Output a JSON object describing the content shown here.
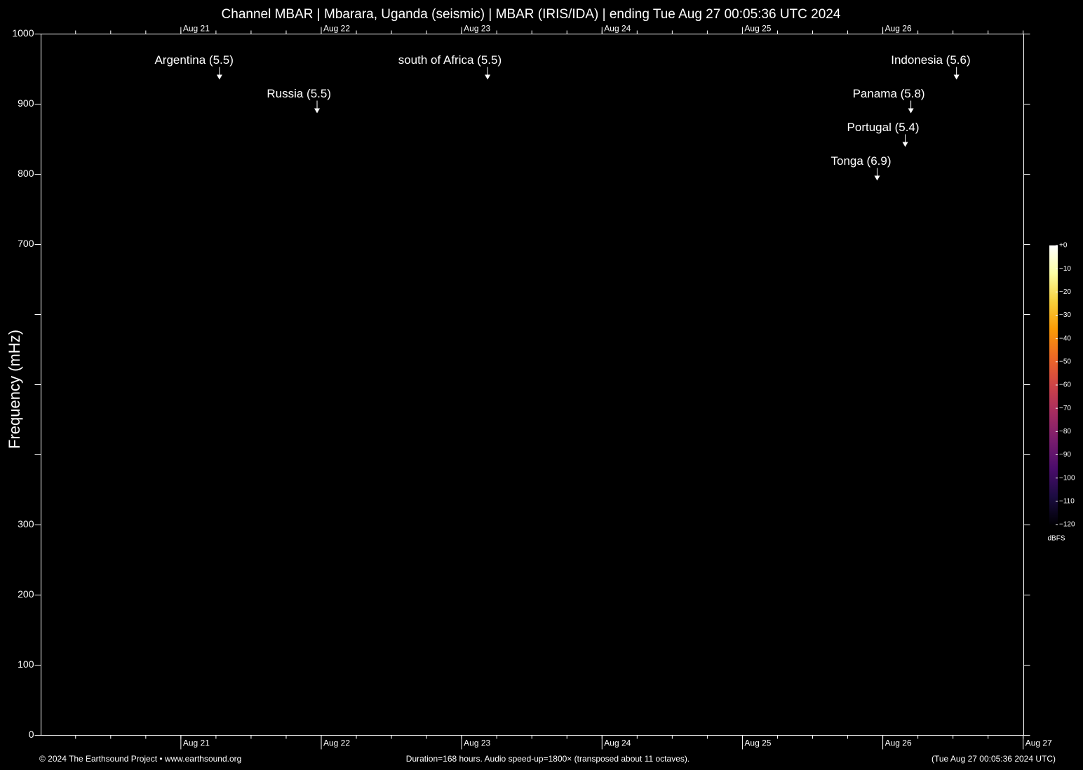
{
  "chart_data": {
    "type": "spectrogram",
    "title": "Channel MBAR | Mbarara, Uganda (seismic) | MBAR (IRIS/IDA) | ending Tue Aug 27 00:05:36 UTC 2024",
    "y_label": "Frequency (mHz)",
    "ylim": [
      0,
      1000
    ],
    "yticks": [
      0,
      100,
      200,
      300,
      700,
      800,
      900,
      1000
    ],
    "yticks_minor": [
      400,
      500,
      600
    ],
    "xlim": [
      "Aug 20 00:05:36",
      "Aug 27 00:05:36"
    ],
    "xticks": [
      "Aug 21",
      "Aug 22",
      "Aug 23",
      "Aug 24",
      "Aug 25",
      "Aug 26",
      "Aug 27"
    ],
    "x_minor_divisions": 4,
    "annotations": [
      {
        "text": "Argentina (5.5)",
        "x": "Aug 21 06:36",
        "y": 935
      },
      {
        "text": "Russia (5.5)",
        "x": "Aug 21 23:17",
        "y": 887
      },
      {
        "text": "south of Africa (5.5)",
        "x": "Aug 23 04:26",
        "y": 935
      },
      {
        "text": "Tonga (6.9)",
        "x": "Aug 25 23:02",
        "y": 791
      },
      {
        "text": "Portugal (5.4)",
        "x": "Aug 26 03:50",
        "y": 839
      },
      {
        "text": "Panama (5.8)",
        "x": "Aug 26 04:48",
        "y": 887
      },
      {
        "text": "Indonesia (5.6)",
        "x": "Aug 26 12:36",
        "y": 935
      }
    ],
    "colorbar": {
      "label": "dBFS",
      "lim": [
        -120,
        0
      ],
      "colors": [
        "#000004",
        "#1b0c41",
        "#4a0c6b",
        "#781c6d",
        "#a52c60",
        "#cf4446",
        "#ed6925",
        "#fb9b06",
        "#f7d13d",
        "#fcffa4",
        "#ffffff"
      ],
      "ticks": [
        {
          "value": 0,
          "label": "+0"
        },
        {
          "value": -10,
          "label": "−10"
        },
        {
          "value": -20,
          "label": "−20"
        },
        {
          "value": -30,
          "label": "−30"
        },
        {
          "value": -40,
          "label": "−40"
        },
        {
          "value": -50,
          "label": "−50"
        },
        {
          "value": -60,
          "label": "−60"
        },
        {
          "value": -70,
          "label": "−70"
        },
        {
          "value": -80,
          "label": "−80"
        },
        {
          "value": -90,
          "label": "−90"
        },
        {
          "value": -100,
          "label": "−100"
        },
        {
          "value": -110,
          "label": "−110"
        },
        {
          "value": -120,
          "label": "−120"
        }
      ]
    },
    "footer_left": "© 2024 The Earthsound Project • www.earthsound.org",
    "footer_center": "Duration=168 hours. Audio speed-up=1800× (transposed about 11 octaves).",
    "footer_right": "(Tue Aug 27 00:05:36 2024 UTC)"
  }
}
